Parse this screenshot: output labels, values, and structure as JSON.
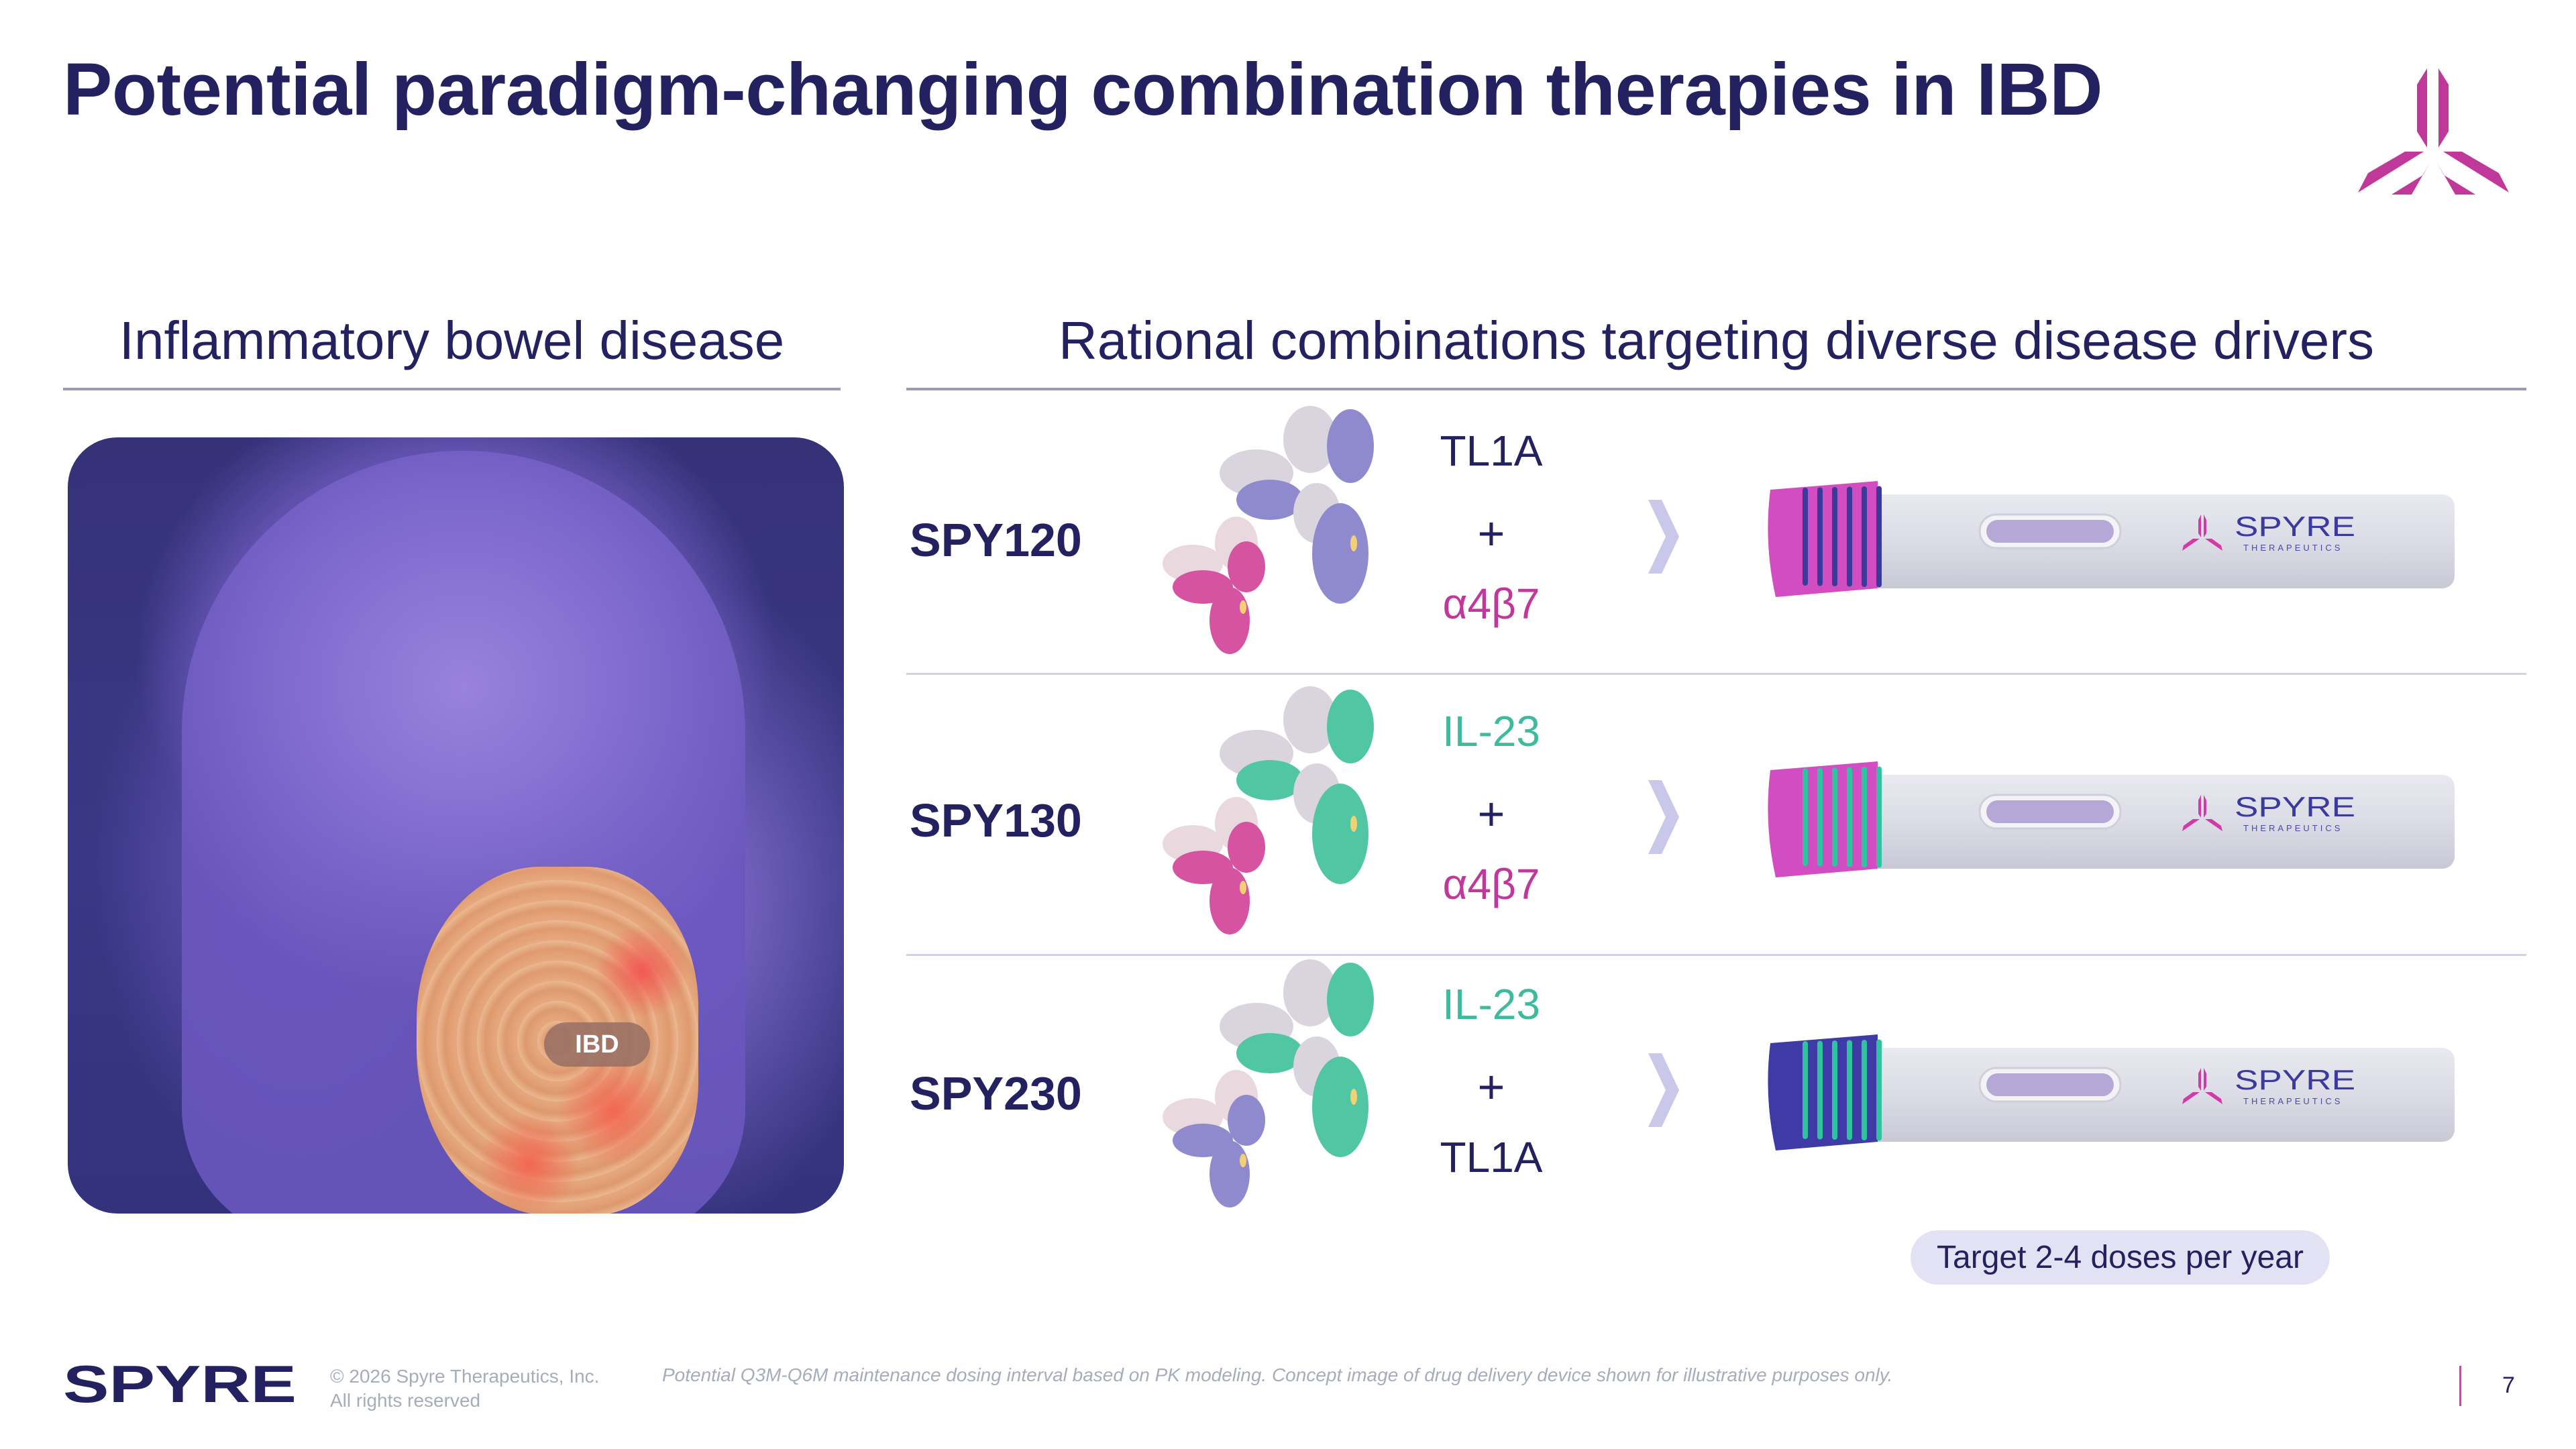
{
  "slide": {
    "title": "Potential paradigm-changing combination therapies in IBD",
    "page_number": "7",
    "colors": {
      "navy": "#232160",
      "magenta": "#c0399a",
      "teal": "#3dbb9c",
      "rule": "#9c9bb6",
      "pill_bg": "#e3e2f4",
      "chevron": "#c9c8ea",
      "footer_gray": "#a5adbb"
    }
  },
  "left": {
    "heading": "Inflammatory bowel disease",
    "image_badge": "IBD"
  },
  "right": {
    "heading": "Rational combinations targeting diverse disease drivers",
    "rows": [
      {
        "name": "SPY120",
        "target_top": "TL1A",
        "target_top_color": "#232160",
        "plus": "+",
        "target_bottom": "α4β7",
        "target_bottom_color": "#c0399a",
        "antibody_colors": [
          "#8a84cc",
          "#d44a9c"
        ],
        "device_cap_color": "#d24dc2",
        "device_ring_color": "#3a3a9a"
      },
      {
        "name": "SPY130",
        "target_top": "IL-23",
        "target_top_color": "#3dbb9c",
        "plus": "+",
        "target_bottom": "α4β7",
        "target_bottom_color": "#c0399a",
        "antibody_colors": [
          "#48c39e",
          "#d44a9c"
        ],
        "device_cap_color": "#d24dc2",
        "device_ring_color": "#2fc4a0"
      },
      {
        "name": "SPY230",
        "target_top": "IL-23",
        "target_top_color": "#3dbb9c",
        "plus": "+",
        "target_bottom": "TL1A",
        "target_bottom_color": "#232160",
        "antibody_colors": [
          "#48c39e",
          "#8a84cc"
        ],
        "device_cap_color": "#3e3aa6",
        "device_ring_color": "#2fc4a0"
      }
    ],
    "device_brand": "SPYRE",
    "device_brand_sub": "THERAPEUTICS",
    "dosing_pill": "Target 2-4 doses per year"
  },
  "footer": {
    "logo_text": "SPYRE",
    "copyright_line1": "© 2026 Spyre Therapeutics, Inc.",
    "copyright_line2": "All rights reserved",
    "disclaimer": "Potential Q3M-Q6M maintenance dosing interval based on PK modeling. Concept image of drug delivery device shown for illustrative purposes only."
  }
}
